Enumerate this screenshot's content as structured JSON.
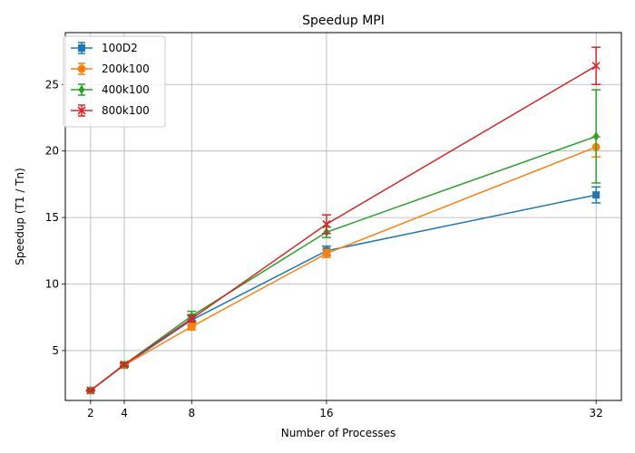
{
  "chart_data": {
    "type": "line",
    "title": "Speedup MPI",
    "xlabel": "Number of Processes",
    "ylabel": "Speedup (T1 / Tn)",
    "x": [
      2,
      4,
      8,
      16,
      32
    ],
    "x_ticks": [
      2,
      4,
      8,
      16,
      32
    ],
    "y_ticks": [
      5,
      10,
      15,
      20,
      25
    ],
    "xlim": [
      0.5,
      33.5
    ],
    "ylim": [
      1.25,
      28.9
    ],
    "grid": true,
    "legend_position": "top-left",
    "series": [
      {
        "name": "100D2",
        "color": "#1f77b4",
        "marker": "square",
        "values": [
          2.0,
          3.9,
          7.3,
          12.5,
          16.7
        ],
        "errors": [
          0.05,
          0.15,
          0.4,
          0.35,
          0.6
        ]
      },
      {
        "name": "200k100",
        "color": "#ff7f0e",
        "marker": "circle",
        "values": [
          2.0,
          3.9,
          6.8,
          12.3,
          20.3
        ],
        "errors": [
          0.05,
          0.1,
          0.25,
          0.3,
          0.75
        ]
      },
      {
        "name": "400k100",
        "color": "#2ca02c",
        "marker": "diamond",
        "values": [
          2.0,
          3.95,
          7.6,
          13.9,
          21.1
        ],
        "errors": [
          0.05,
          0.15,
          0.35,
          0.4,
          3.5
        ]
      },
      {
        "name": "800k100",
        "color": "#d62728",
        "marker": "x",
        "values": [
          2.0,
          3.95,
          7.4,
          14.5,
          26.4
        ],
        "errors": [
          0.05,
          0.1,
          0.25,
          0.7,
          1.4
        ]
      }
    ]
  }
}
